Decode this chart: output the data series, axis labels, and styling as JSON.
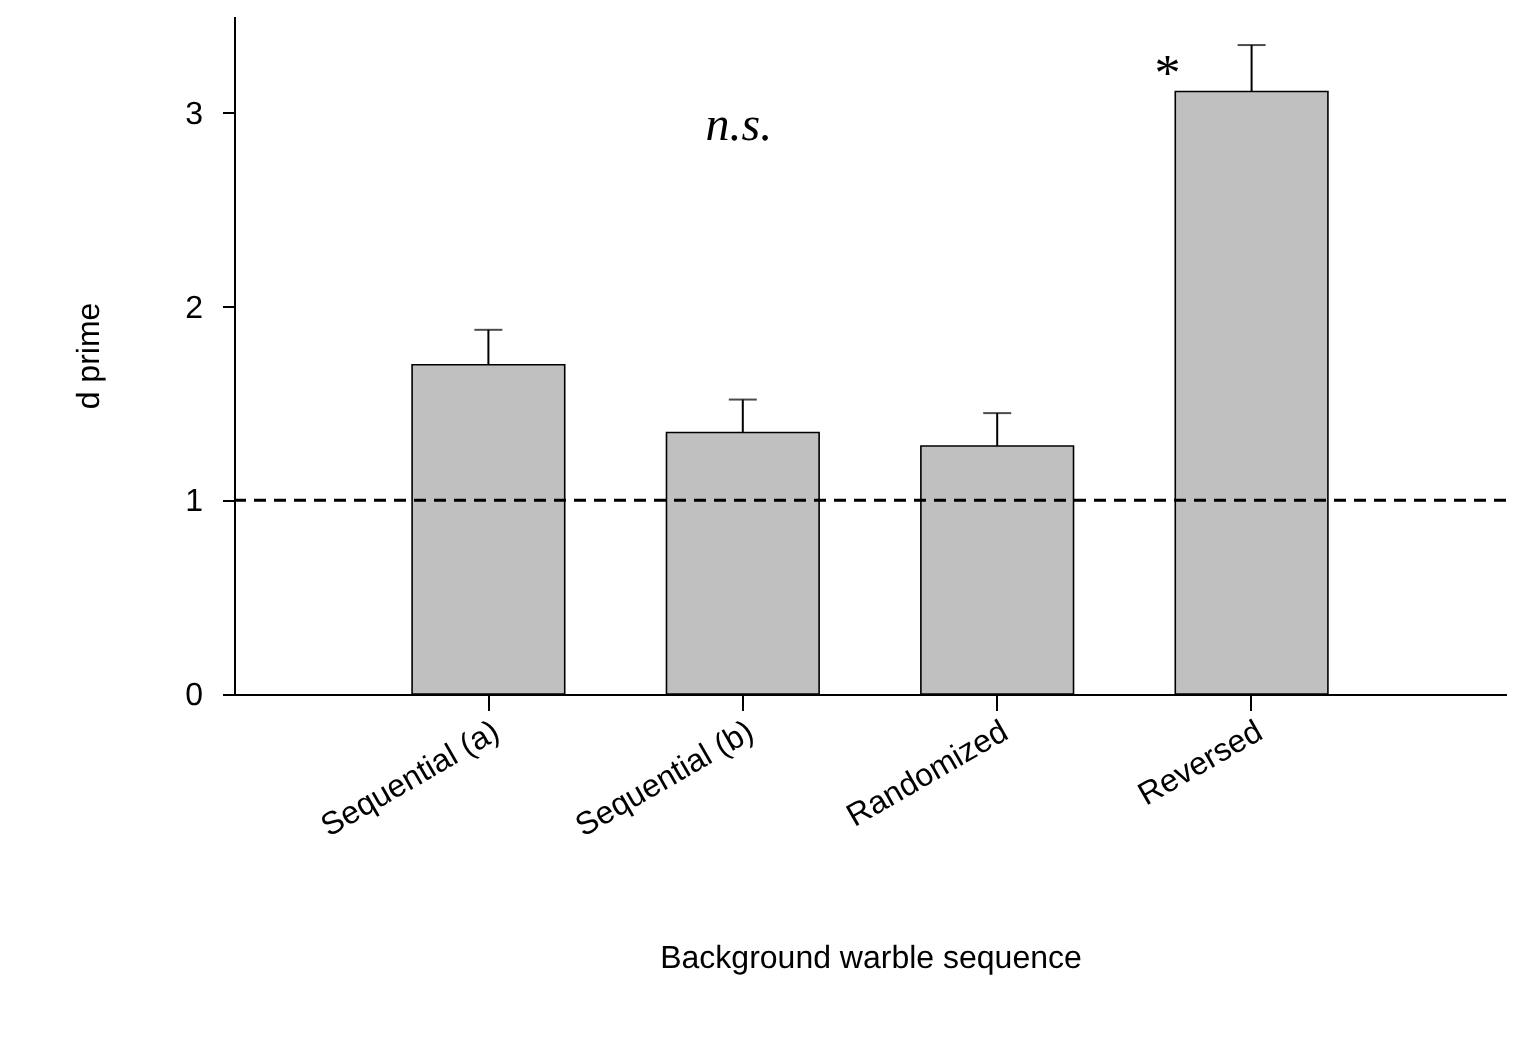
{
  "chart_data": {
    "type": "bar",
    "categories": [
      "Sequential (a)",
      "Sequential (b)",
      "Randomized",
      "Reversed"
    ],
    "values": [
      1.7,
      1.35,
      1.28,
      3.11
    ],
    "errors": [
      0.18,
      0.17,
      0.17,
      0.24
    ],
    "color": "#c0c0c0",
    "xlabel": "Background warble sequence",
    "ylabel": "d prime",
    "ylim": [
      0,
      3.5
    ],
    "yticks": [
      0,
      1,
      2,
      3
    ],
    "ref_lines": [
      {
        "axis": "y",
        "value": 1,
        "color": "#000000",
        "line_style": "dashed"
      }
    ],
    "annotations": [
      "n.s.",
      {
        "text": "*",
        "x": "Reversed",
        "y": 3.2
      }
    ],
    "grid": false
  }
}
